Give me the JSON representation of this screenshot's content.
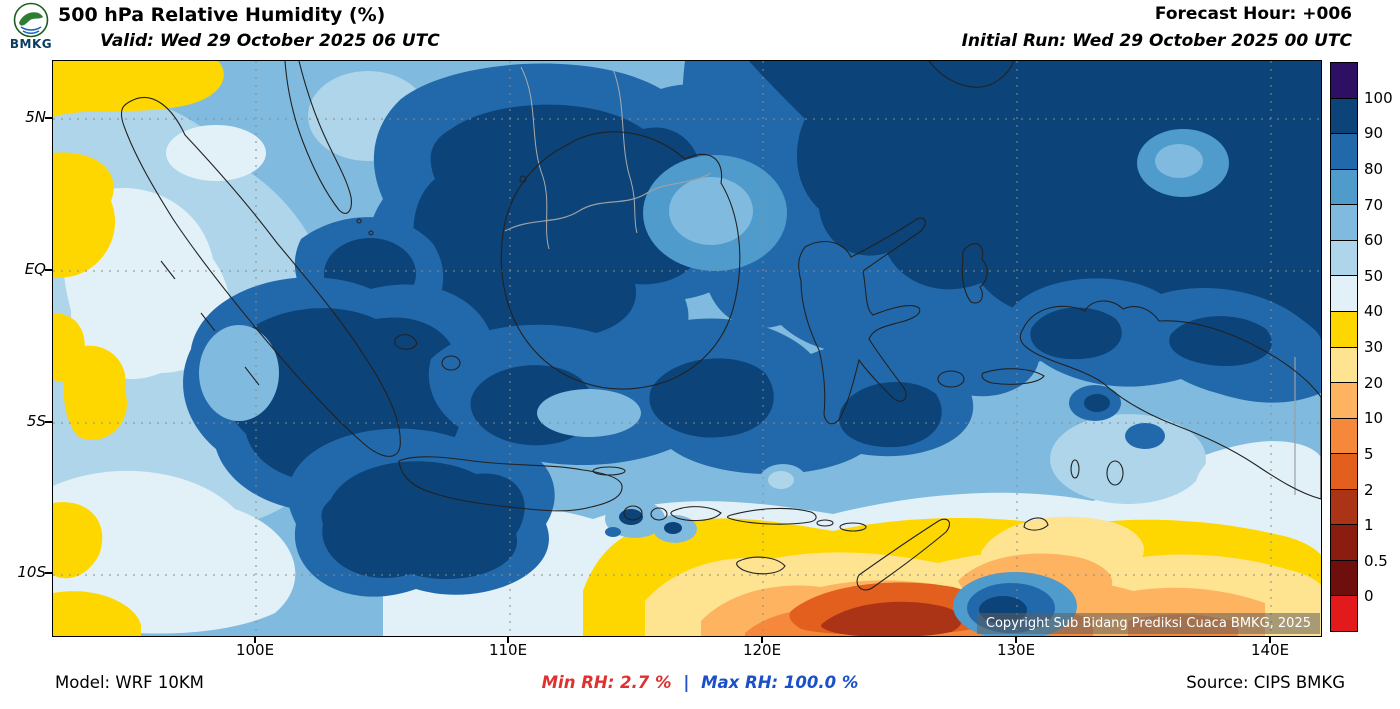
{
  "header": {
    "logo_text": "BMKG",
    "title": "500 hPa Relative Humidity (%)",
    "valid": "Valid: Wed 29 October 2025 06 UTC",
    "forecast_hour": "Forecast Hour: +006",
    "initial_run": "Initial Run: Wed 29 October 2025 00 UTC"
  },
  "map": {
    "copyright": "Copyright Sub Bidang Prediksi Cuaca BMKG, 2025",
    "x_tick_labels": [
      "100E",
      "110E",
      "120E",
      "130E",
      "140E"
    ],
    "y_tick_labels": [
      "5N",
      "EQ",
      "5S",
      "10S"
    ]
  },
  "colorbar": {
    "tick_labels": [
      "100",
      "90",
      "80",
      "70",
      "60",
      "50",
      "40",
      "30",
      "20",
      "10",
      "5",
      "2",
      "1",
      "0.5",
      "0"
    ],
    "segment_keys": [
      "rh_over_100",
      "rh_90_100",
      "rh_80_90",
      "rh_70_80",
      "rh_60_70",
      "rh_50_60",
      "rh_40_50",
      "rh_30_40",
      "rh_20_30",
      "rh_10_20",
      "rh_5_10",
      "rh_2_5",
      "rh_1_2",
      "rh_05_1",
      "rh_0_05",
      "rh_below_0"
    ]
  },
  "footer": {
    "model": "Model: WRF 10KM",
    "min_rh": "Min RH:  2.7 %",
    "separator": "|",
    "max_rh": "Max RH: 100.0 %",
    "source": "Source: CIPS BMKG"
  },
  "palette": {
    "rh_over_100": "#2d0f63",
    "rh_90_100": "#0c4378",
    "rh_80_90": "#2269ab",
    "rh_70_80": "#4f9bcb",
    "rh_60_70": "#80bade",
    "rh_50_60": "#aed5e9",
    "rh_40_50": "#e2f0f8",
    "rh_30_40": "#ffd700",
    "rh_20_30": "#fee391",
    "rh_10_20": "#fdb360",
    "rh_5_10": "#f5883b",
    "rh_2_5": "#e35f1e",
    "rh_1_2": "#ab3416",
    "rh_05_1": "#8a1d10",
    "rh_0_05": "#6e0f0e",
    "rh_below_0": "#e31a1c",
    "grid": "#8c8c8c",
    "coastline": "#222222",
    "political_border": "#9aa0a6",
    "maritime_line": "#aaaaaa"
  }
}
